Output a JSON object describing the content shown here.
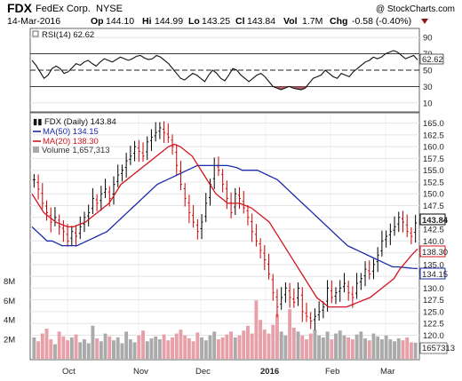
{
  "header": {
    "ticker": "FDX",
    "company": "FedEx Corp.",
    "exchange": "NYSE",
    "watermark": "@ StockCharts.com",
    "date": "14-Mar-2016",
    "quote": [
      {
        "label": "Op",
        "value": "144.10"
      },
      {
        "label": "Hi",
        "value": "144.99"
      },
      {
        "label": "Lo",
        "value": "143.25"
      },
      {
        "label": "Cl",
        "value": "143.84"
      },
      {
        "label": "Vol",
        "value": "1.7M"
      },
      {
        "label": "Chg",
        "value": "-0.58 (-0.40%)"
      }
    ],
    "change_direction": "down"
  },
  "colors": {
    "price": "#000000",
    "ma50": "#1a2aa8",
    "ma20": "#d4141e",
    "volume_up": "#aaaaaa",
    "volume_down": "#e8a0a8",
    "rsi_fill": "#b05a64",
    "grid": "#e4e4e4"
  },
  "chart_data": [
    {
      "type": "line",
      "name": "RSI panel",
      "legend": "RSI(14) 62.62",
      "current": "62.62",
      "ylim": [
        0,
        100
      ],
      "ticks": [
        "90",
        "70",
        "50",
        "30",
        "10"
      ],
      "reference_lines": [
        70,
        50,
        30
      ],
      "points": [
        62,
        56,
        48,
        40,
        44,
        52,
        55,
        52,
        46,
        48,
        53,
        58,
        56,
        60,
        62,
        58,
        55,
        60,
        64,
        62,
        60,
        63,
        66,
        64,
        62,
        64,
        67,
        68,
        65,
        63,
        64,
        68,
        66,
        62,
        58,
        52,
        46,
        40,
        38,
        42,
        46,
        44,
        40,
        36,
        44,
        50,
        46,
        40,
        37,
        44,
        52,
        50,
        44,
        40,
        36,
        40,
        44,
        46,
        42,
        36,
        30,
        28,
        26,
        28,
        30,
        28,
        27,
        26,
        28,
        34,
        40,
        42,
        44,
        50,
        46,
        42,
        40,
        46,
        44,
        42,
        48,
        52,
        56,
        60,
        62,
        66,
        64,
        66,
        70,
        72,
        74,
        72,
        68,
        64,
        66,
        68,
        62.62
      ]
    },
    {
      "type": "bar",
      "name": "Price",
      "legend": "FDX (Daily) 143.84",
      "current": "143.84",
      "ylim": [
        115,
        167
      ],
      "ticks": [
        "165.0",
        "162.5",
        "160.0",
        "157.5",
        "155.0",
        "152.5",
        "150.0",
        "147.5",
        "145.0",
        "142.5",
        "140.0",
        "137.5",
        "135.0",
        "132.5",
        "130.0",
        "127.5",
        "125.0",
        "122.5",
        "120.0"
      ],
      "x_tick_labels": [
        "Oct",
        "Nov",
        "Dec",
        "2016",
        "Feb",
        "Mar"
      ],
      "close": [
        153,
        151,
        148,
        146,
        144,
        145,
        143,
        142,
        140,
        142,
        141,
        143,
        145,
        146,
        149,
        148,
        150,
        151,
        149,
        152,
        154,
        155,
        157,
        158,
        160,
        159,
        158,
        161,
        162,
        163,
        164,
        163,
        162,
        160,
        156,
        152,
        149,
        146,
        144,
        142,
        144,
        148,
        152,
        156,
        155,
        152,
        149,
        146,
        150,
        149,
        147,
        145,
        142,
        140,
        138,
        136,
        133,
        129,
        126,
        128,
        130,
        128,
        127,
        130,
        125,
        124,
        123,
        124,
        125,
        126,
        130,
        128,
        129,
        130,
        131,
        129,
        128,
        131,
        132,
        134,
        133,
        135,
        137,
        140,
        141,
        142,
        143,
        145,
        144,
        142,
        141,
        143.84
      ],
      "ma50": {
        "legend": "MA(50) 134.15",
        "current": "134.15",
        "values": [
          143,
          142,
          141,
          140,
          140,
          139.5,
          139,
          139,
          139,
          139,
          139.5,
          140,
          140.5,
          141,
          141.5,
          142,
          143,
          144,
          145,
          146,
          147,
          148,
          149,
          150,
          151,
          152,
          152.5,
          153,
          153.5,
          154,
          154.5,
          155,
          155.5,
          156,
          156,
          156,
          156,
          156,
          156,
          156,
          155.8,
          155.5,
          155,
          155,
          155,
          155,
          154.5,
          154,
          153.5,
          153,
          152,
          151,
          150,
          149,
          148,
          147,
          146,
          145,
          144,
          143,
          142,
          141,
          140,
          139,
          138.5,
          138,
          137.5,
          137,
          136.5,
          136,
          135.5,
          135,
          134.5,
          134.5,
          134.4,
          134.3,
          134.2,
          134.15
        ]
      },
      "ma20": {
        "legend": "MA(20) 138.30",
        "current": "138.30",
        "values": [
          150,
          148,
          146,
          145,
          144,
          143.5,
          143,
          143,
          143.5,
          144,
          145,
          146,
          147,
          148,
          150,
          152,
          153,
          154,
          155,
          156,
          157,
          158,
          159,
          160,
          160.5,
          160,
          159,
          158,
          156,
          154,
          152,
          150,
          149,
          148,
          148,
          148,
          147.5,
          147,
          146,
          145,
          144,
          142,
          140,
          138,
          136,
          134,
          132,
          130,
          128,
          127,
          126,
          126,
          126,
          126,
          126.5,
          127,
          127.5,
          128,
          129,
          130,
          131,
          132,
          134,
          135.5,
          137,
          138.3
        ]
      }
    },
    {
      "type": "bar",
      "name": "Volume",
      "legend": "Volume 1,657,313",
      "current": "1657313",
      "ticks": [
        "8M",
        "6M",
        "4M",
        "2M"
      ],
      "ylim": [
        0,
        9.5
      ],
      "values": [
        2.2,
        1.8,
        2.6,
        3.1,
        2.0,
        1.5,
        2.8,
        2.3,
        1.9,
        2.2,
        2.5,
        1.7,
        2.0,
        1.6,
        3.4,
        2.1,
        1.8,
        2.6,
        2.3,
        1.9,
        2.2,
        1.6,
        2.8,
        2.0,
        1.7,
        2.4,
        2.9,
        1.8,
        2.1,
        2.3,
        2.0,
        2.5,
        1.9,
        2.2,
        2.6,
        3.0,
        2.4,
        2.1,
        1.8,
        2.7,
        2.2,
        1.9,
        2.4,
        2.8,
        2.0,
        2.2,
        2.5,
        2.8,
        2.2,
        2.4,
        2.9,
        3.4,
        2.6,
        6.0,
        4.0,
        3.0,
        2.6,
        3.5,
        4.6,
        2.8,
        2.4,
        5.1,
        3.2,
        2.8,
        2.4,
        2.0,
        2.6,
        3.0,
        2.4,
        2.2,
        2.8,
        2.0,
        2.6,
        2.9,
        2.4,
        2.2,
        2.0,
        2.5,
        2.8,
        2.1,
        1.9,
        2.6,
        2.3,
        2.0,
        2.4,
        2.0,
        1.8,
        2.1,
        1.9,
        2.2,
        1.7,
        1.66
      ]
    }
  ]
}
